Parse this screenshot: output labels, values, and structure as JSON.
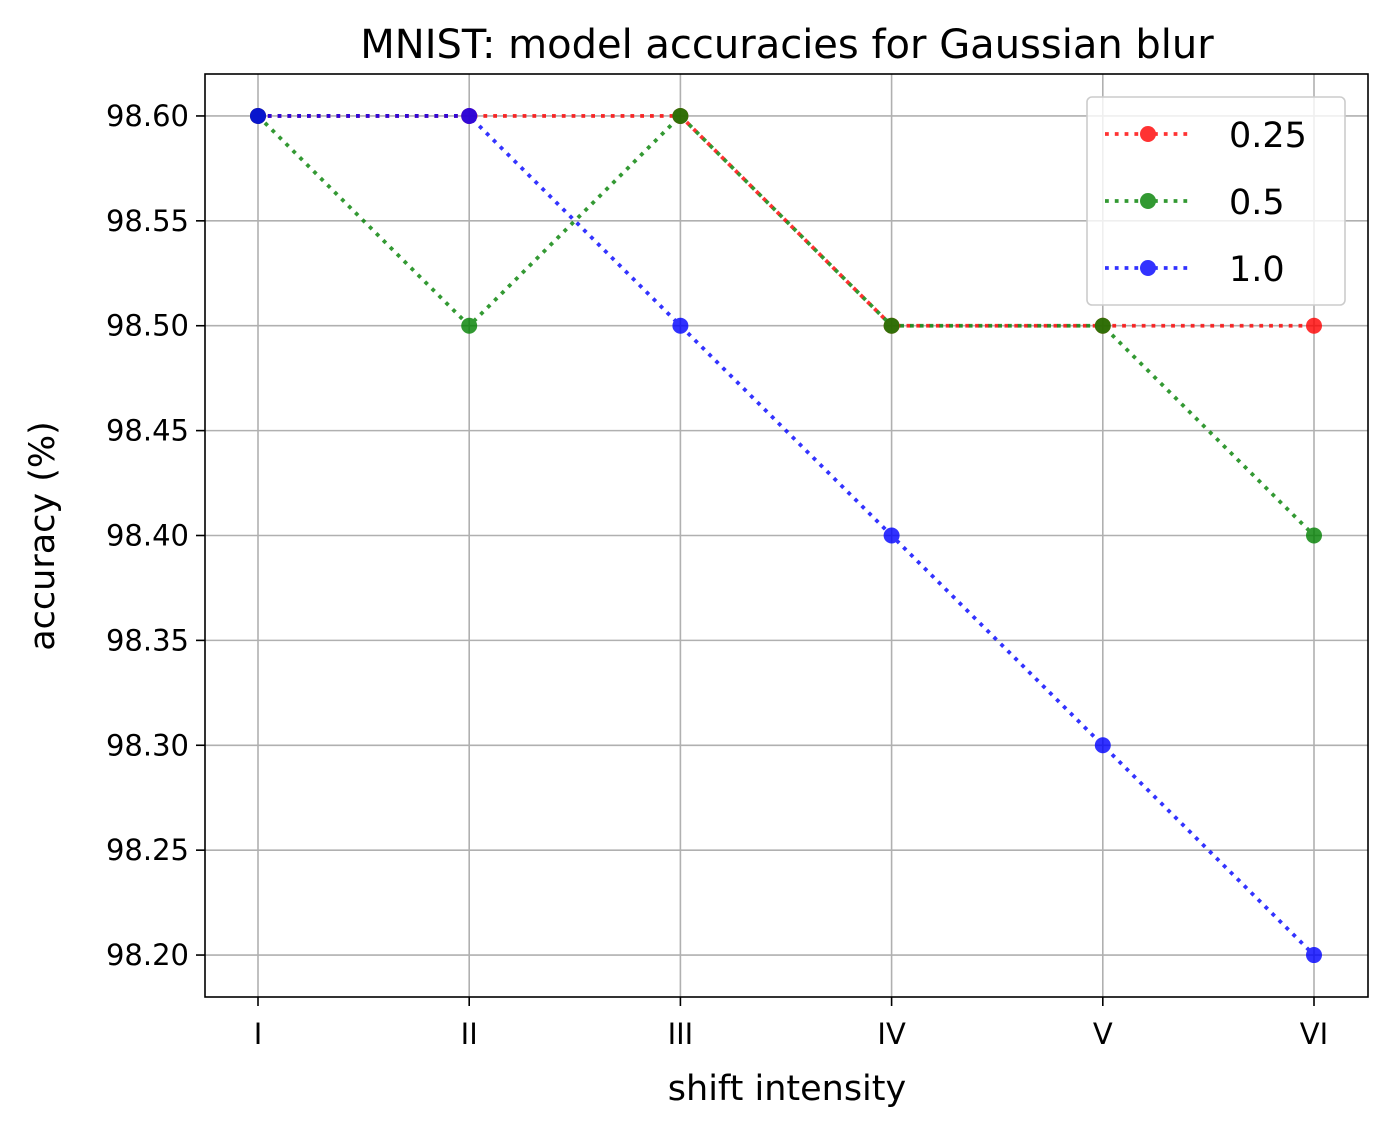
{
  "chart_data": {
    "type": "line",
    "title": "MNIST: model accuracies for Gaussian blur",
    "xlabel": "shift intensity",
    "ylabel": "accuracy (%)",
    "categories": [
      "I",
      "II",
      "III",
      "IV",
      "V",
      "VI"
    ],
    "yticks": [
      "98.20",
      "98.25",
      "98.30",
      "98.35",
      "98.40",
      "98.45",
      "98.50",
      "98.55",
      "98.60"
    ],
    "ylim": [
      98.18,
      98.62
    ],
    "grid": true,
    "legend_position": "top-right",
    "line_style": "dotted",
    "series": [
      {
        "name": "0.25",
        "color": "#ff0000",
        "values": [
          98.6,
          98.6,
          98.6,
          98.5,
          98.5,
          98.5
        ]
      },
      {
        "name": "0.5",
        "color": "#008000",
        "values": [
          98.6,
          98.5,
          98.6,
          98.5,
          98.5,
          98.4
        ]
      },
      {
        "name": "1.0",
        "color": "#0000ff",
        "values": [
          98.6,
          98.6,
          98.5,
          98.4,
          98.3,
          98.2
        ]
      }
    ]
  }
}
